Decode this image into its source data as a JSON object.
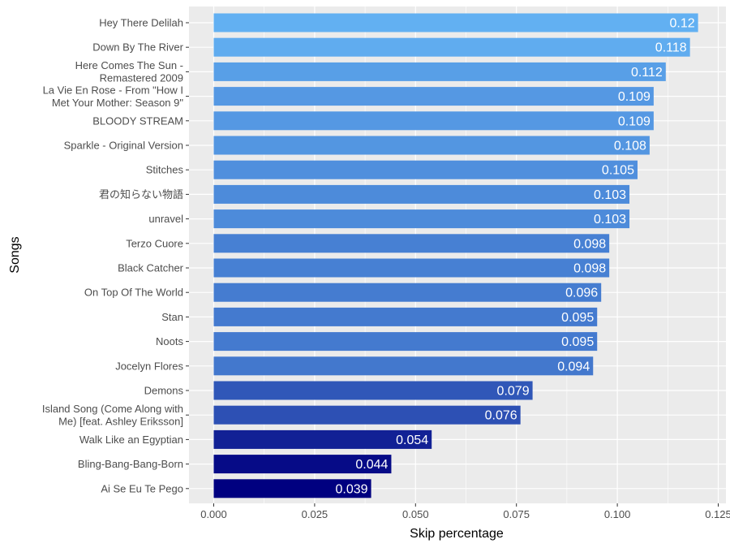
{
  "chart_data": {
    "type": "bar",
    "orientation": "horizontal",
    "xlabel": "Skip percentage",
    "ylabel": "Songs",
    "xlim": [
      0,
      0.125
    ],
    "x_ticks": [
      0,
      0.025,
      0.05,
      0.075,
      0.1,
      0.125
    ],
    "x_tick_labels": [
      "0.000",
      "0.025",
      "0.050",
      "0.075",
      "0.100",
      "0.125"
    ],
    "grid": true,
    "legend": "none",
    "color_low": "#000080",
    "color_high": "#62b0f2",
    "categories": [
      [
        "Hey There Delilah"
      ],
      [
        "Down By The River"
      ],
      [
        "Here Comes The Sun -",
        "Remastered 2009"
      ],
      [
        "La Vie En Rose - From \"How I",
        "Met Your Mother: Season 9\""
      ],
      [
        "BLOODY STREAM"
      ],
      [
        "Sparkle - Original Version"
      ],
      [
        "Stitches"
      ],
      [
        "君の知らない物語"
      ],
      [
        "unravel"
      ],
      [
        "Terzo Cuore"
      ],
      [
        "Black Catcher"
      ],
      [
        "On Top Of The World"
      ],
      [
        "Stan"
      ],
      [
        "Noots"
      ],
      [
        "Jocelyn Flores"
      ],
      [
        "Demons"
      ],
      [
        "Island Song (Come Along with",
        "Me) [feat. Ashley Eriksson]"
      ],
      [
        "Walk Like an Egyptian"
      ],
      [
        "Bling-Bang-Bang-Born"
      ],
      [
        "Ai Se Eu Te Pego"
      ]
    ],
    "values": [
      0.12,
      0.118,
      0.112,
      0.109,
      0.109,
      0.108,
      0.105,
      0.103,
      0.103,
      0.098,
      0.098,
      0.096,
      0.095,
      0.095,
      0.094,
      0.079,
      0.076,
      0.054,
      0.044,
      0.039
    ],
    "value_labels": [
      "0.12",
      "0.118",
      "0.112",
      "0.109",
      "0.109",
      "0.108",
      "0.105",
      "0.103",
      "0.103",
      "0.098",
      "0.098",
      "0.096",
      "0.095",
      "0.095",
      "0.094",
      "0.079",
      "0.076",
      "0.054",
      "0.044",
      "0.039"
    ]
  }
}
